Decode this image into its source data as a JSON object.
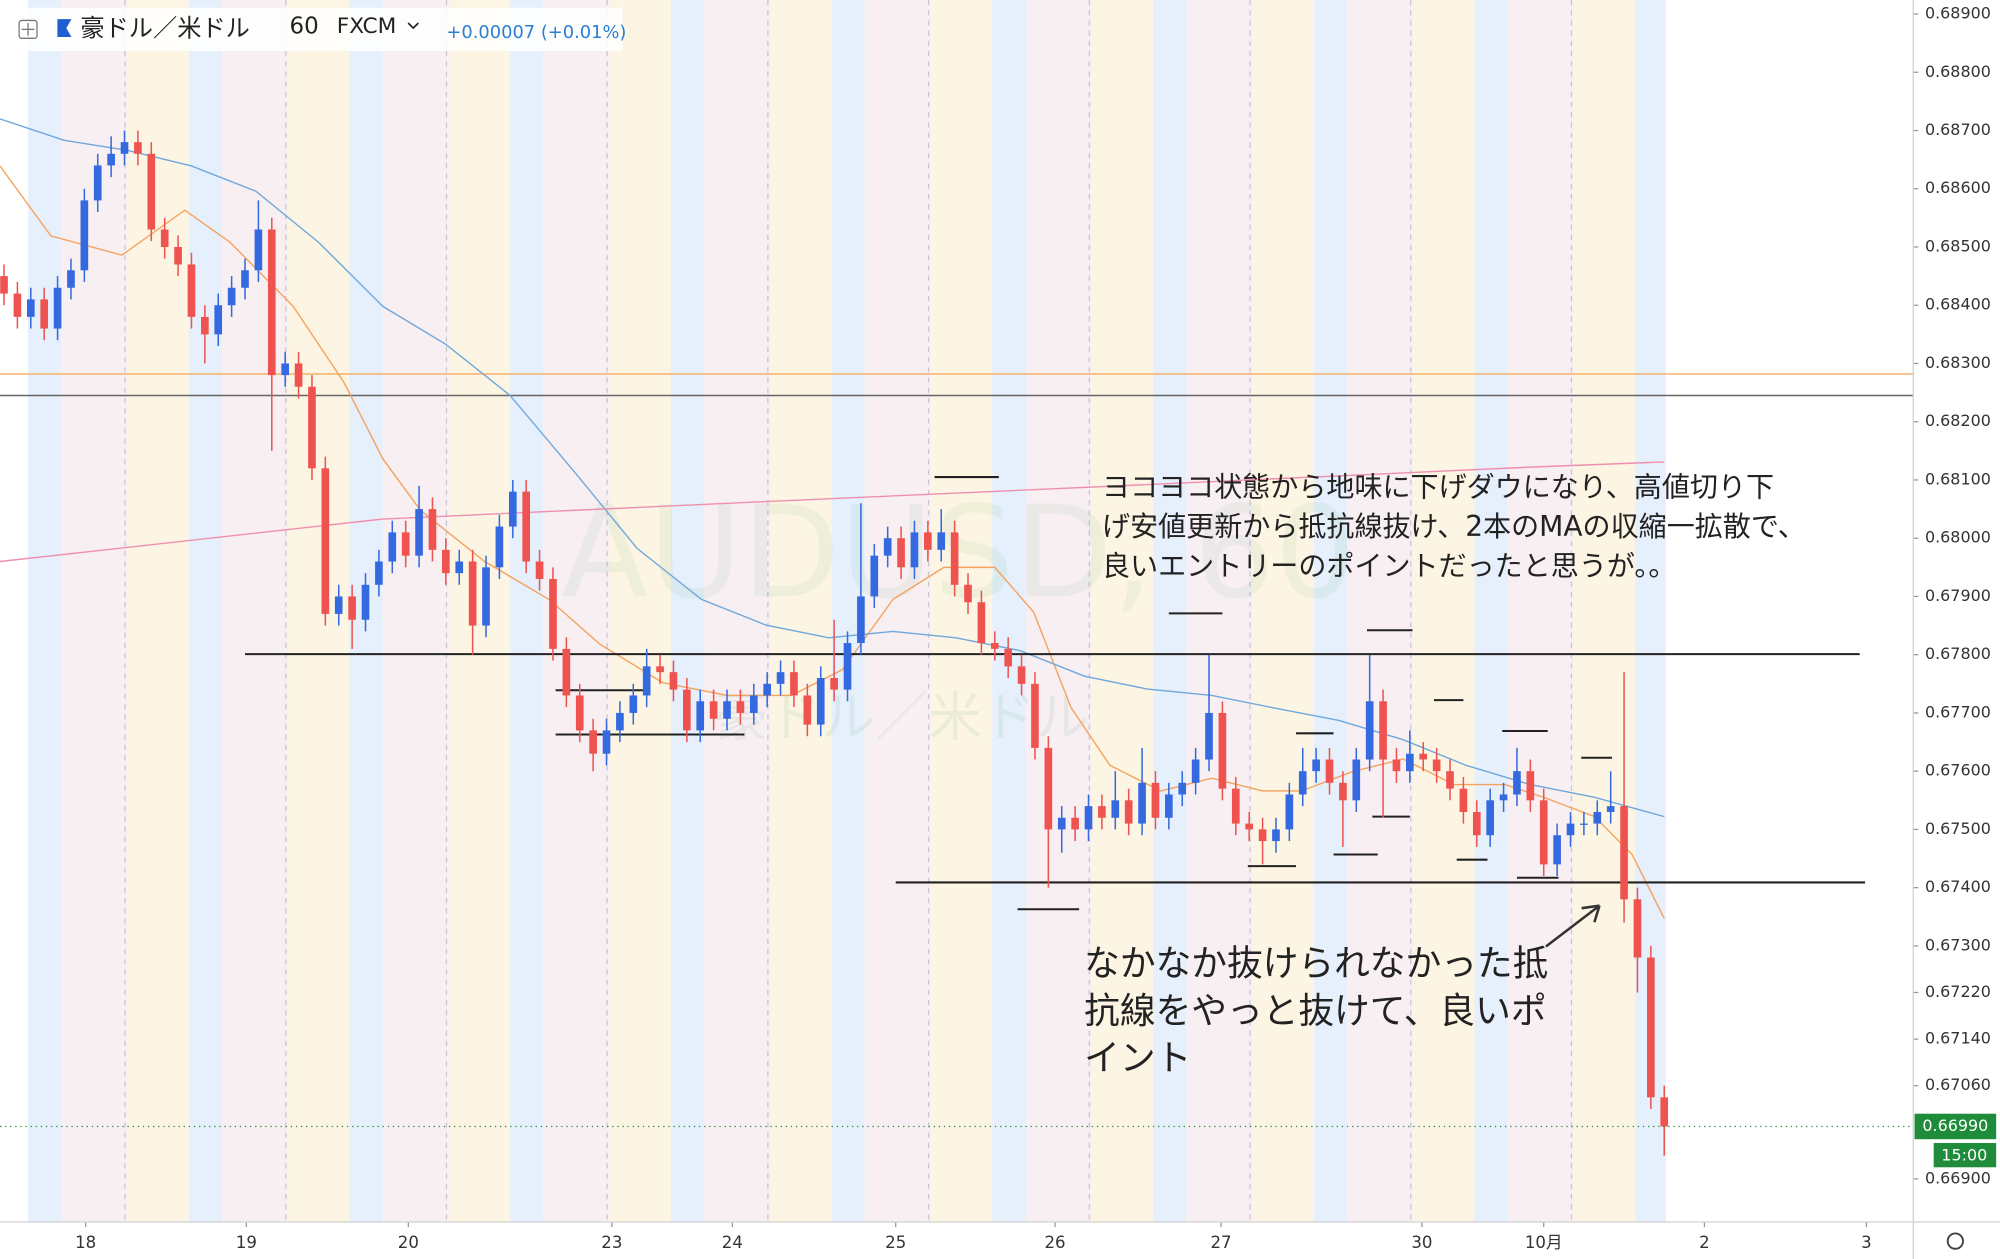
{
  "chart_data": {
    "type": "candlestick",
    "symbol": "豪ドル／米ドル",
    "interval": "60",
    "source": "FXCM",
    "change": "+0.00007 (+0.01%)",
    "watermark": "AUDUSD, 60",
    "up_color": "#3569e0",
    "down_color": "#ef5350",
    "ylim": [
      0.66826,
      0.68924
    ],
    "yticks": [
      {
        "value": 0.689,
        "label": "0.68900"
      },
      {
        "value": 0.688,
        "label": "0.68800"
      },
      {
        "value": 0.687,
        "label": "0.68700"
      },
      {
        "value": 0.686,
        "label": "0.68600"
      },
      {
        "value": 0.685,
        "label": "0.68500"
      },
      {
        "value": 0.684,
        "label": "0.68400"
      },
      {
        "value": 0.683,
        "label": "0.68300"
      },
      {
        "value": 0.682,
        "label": "0.68200"
      },
      {
        "value": 0.681,
        "label": "0.68100"
      },
      {
        "value": 0.68,
        "label": "0.68000"
      },
      {
        "value": 0.679,
        "label": "0.67900"
      },
      {
        "value": 0.678,
        "label": "0.67800"
      },
      {
        "value": 0.677,
        "label": "0.67700"
      },
      {
        "value": 0.676,
        "label": "0.67600"
      },
      {
        "value": 0.675,
        "label": "0.67500"
      },
      {
        "value": 0.674,
        "label": "0.67400"
      },
      {
        "value": 0.673,
        "label": "0.67300"
      },
      {
        "value": 0.6722,
        "label": "0.67220"
      },
      {
        "value": 0.6714,
        "label": "0.67140"
      },
      {
        "value": 0.6706,
        "label": "0.67060"
      },
      {
        "value": 0.669,
        "label": "0.66900"
      }
    ],
    "xlim": [
      -0.3,
      142.6
    ],
    "xticks": [
      {
        "value": 6.1,
        "label": "18"
      },
      {
        "value": 18.1,
        "label": "19"
      },
      {
        "value": 30.2,
        "label": "20"
      },
      {
        "value": 45.4,
        "label": "23"
      },
      {
        "value": 54.4,
        "label": "24"
      },
      {
        "value": 66.6,
        "label": "25"
      },
      {
        "value": 78.5,
        "label": "26"
      },
      {
        "value": 90.9,
        "label": "27"
      },
      {
        "value": 105.9,
        "label": "30"
      },
      {
        "value": 115.0,
        "label": "10月"
      },
      {
        "value": 127.0,
        "label": "2"
      },
      {
        "value": 139.1,
        "label": "3"
      }
    ],
    "grid": false,
    "open": [
      0.6845,
      0.6842,
      0.6838,
      0.6841,
      0.6836,
      0.6843,
      0.6846,
      0.6858,
      0.6864,
      0.6866,
      0.6868,
      0.6866,
      0.6853,
      0.685,
      0.6847,
      0.6838,
      0.6835,
      0.684,
      0.6843,
      0.6846,
      0.6853,
      0.6828,
      0.683,
      0.6826,
      0.6812,
      0.6787,
      0.679,
      0.6786,
      0.6792,
      0.6796,
      0.6801,
      0.6797,
      0.6805,
      0.6798,
      0.6794,
      0.6796,
      0.6785,
      0.6795,
      0.6802,
      0.6808,
      0.6796,
      0.6793,
      0.6781,
      0.6773,
      0.6767,
      0.6763,
      0.6767,
      0.677,
      0.6773,
      0.6778,
      0.6777,
      0.6774,
      0.6767,
      0.6772,
      0.6769,
      0.6772,
      0.677,
      0.6773,
      0.6775,
      0.6777,
      0.6773,
      0.6768,
      0.6776,
      0.6774,
      0.6782,
      0.679,
      0.6797,
      0.68,
      0.6795,
      0.6801,
      0.6798,
      0.6801,
      0.6792,
      0.6789,
      0.6782,
      0.6781,
      0.6778,
      0.6775,
      0.6764,
      0.675,
      0.6752,
      0.675,
      0.6754,
      0.6752,
      0.6755,
      0.6751,
      0.6758,
      0.6752,
      0.6756,
      0.6758,
      0.6762,
      0.677,
      0.6757,
      0.6751,
      0.675,
      0.6748,
      0.675,
      0.6756,
      0.676,
      0.6762,
      0.6758,
      0.6755,
      0.6762,
      0.6772,
      0.6762,
      0.676,
      0.6763,
      0.6762,
      0.676,
      0.6757,
      0.6753,
      0.6749,
      0.6755,
      0.6756,
      0.676,
      0.6755,
      0.6744,
      0.6749,
      0.6751,
      0.6751,
      0.6753,
      0.6754,
      0.6738,
      0.6728,
      0.6704
    ],
    "high": [
      0.6847,
      0.6844,
      0.6843,
      0.6843,
      0.6845,
      0.6848,
      0.686,
      0.6866,
      0.6869,
      0.687,
      0.687,
      0.6868,
      0.6855,
      0.6852,
      0.6849,
      0.684,
      0.6842,
      0.6845,
      0.6848,
      0.6858,
      0.6855,
      0.6832,
      0.6832,
      0.6828,
      0.6814,
      0.6792,
      0.6792,
      0.6794,
      0.6798,
      0.6803,
      0.6803,
      0.6809,
      0.6807,
      0.68,
      0.6798,
      0.6798,
      0.6797,
      0.6804,
      0.681,
      0.681,
      0.6798,
      0.6795,
      0.6783,
      0.6775,
      0.6769,
      0.6769,
      0.6772,
      0.6775,
      0.6781,
      0.678,
      0.6779,
      0.6776,
      0.6774,
      0.6774,
      0.6774,
      0.6774,
      0.6775,
      0.6777,
      0.6779,
      0.6779,
      0.6775,
      0.6778,
      0.6786,
      0.6784,
      0.6806,
      0.6799,
      0.6802,
      0.6802,
      0.6803,
      0.6803,
      0.6805,
      0.6803,
      0.6794,
      0.6791,
      0.6784,
      0.6783,
      0.678,
      0.6777,
      0.6766,
      0.6754,
      0.6754,
      0.6756,
      0.6756,
      0.676,
      0.6757,
      0.6764,
      0.676,
      0.6758,
      0.676,
      0.6764,
      0.678,
      0.6772,
      0.6759,
      0.6753,
      0.6752,
      0.6752,
      0.6758,
      0.6764,
      0.6764,
      0.6764,
      0.676,
      0.6764,
      0.678,
      0.6774,
      0.6764,
      0.6767,
      0.6765,
      0.6764,
      0.6762,
      0.6759,
      0.6755,
      0.6757,
      0.6758,
      0.6764,
      0.6762,
      0.6757,
      0.6751,
      0.6753,
      0.6753,
      0.6755,
      0.676,
      0.6777,
      0.674,
      0.673,
      0.6706
    ],
    "low": [
      0.684,
      0.6836,
      0.6836,
      0.6834,
      0.6834,
      0.6841,
      0.6844,
      0.6856,
      0.6862,
      0.6864,
      0.6864,
      0.6851,
      0.6848,
      0.6845,
      0.6836,
      0.683,
      0.6833,
      0.6838,
      0.6841,
      0.6844,
      0.6815,
      0.6826,
      0.6824,
      0.681,
      0.6785,
      0.6785,
      0.6781,
      0.6784,
      0.679,
      0.6794,
      0.6795,
      0.6795,
      0.6796,
      0.6792,
      0.6792,
      0.678,
      0.6783,
      0.6793,
      0.68,
      0.6794,
      0.6791,
      0.6779,
      0.6771,
      0.6765,
      0.676,
      0.6761,
      0.6765,
      0.6768,
      0.6771,
      0.6775,
      0.6772,
      0.6765,
      0.6765,
      0.6767,
      0.6767,
      0.6768,
      0.6768,
      0.6771,
      0.6773,
      0.6771,
      0.6766,
      0.6766,
      0.6772,
      0.6772,
      0.678,
      0.6788,
      0.6795,
      0.6793,
      0.6793,
      0.6796,
      0.6796,
      0.679,
      0.6787,
      0.678,
      0.6779,
      0.6776,
      0.6773,
      0.6762,
      0.674,
      0.6746,
      0.6748,
      0.6748,
      0.675,
      0.675,
      0.6749,
      0.6749,
      0.675,
      0.675,
      0.6754,
      0.6756,
      0.676,
      0.6755,
      0.6749,
      0.6748,
      0.6744,
      0.6746,
      0.6748,
      0.6754,
      0.6758,
      0.6756,
      0.6747,
      0.6753,
      0.676,
      0.6752,
      0.6758,
      0.6758,
      0.676,
      0.6758,
      0.6755,
      0.6751,
      0.6747,
      0.6747,
      0.6753,
      0.6754,
      0.6753,
      0.6742,
      0.6742,
      0.6747,
      0.6749,
      0.6749,
      0.6751,
      0.6734,
      0.6722,
      0.6702,
      0.6694
    ],
    "close": [
      0.6842,
      0.6838,
      0.6841,
      0.6836,
      0.6843,
      0.6846,
      0.6858,
      0.6864,
      0.6866,
      0.6868,
      0.6866,
      0.6853,
      0.685,
      0.6847,
      0.6838,
      0.6835,
      0.684,
      0.6843,
      0.6846,
      0.6853,
      0.6828,
      0.683,
      0.6826,
      0.6812,
      0.6787,
      0.679,
      0.6786,
      0.6792,
      0.6796,
      0.6801,
      0.6797,
      0.6805,
      0.6798,
      0.6794,
      0.6796,
      0.6785,
      0.6795,
      0.6802,
      0.6808,
      0.6796,
      0.6793,
      0.6781,
      0.6773,
      0.6767,
      0.6763,
      0.6767,
      0.677,
      0.6773,
      0.6778,
      0.6777,
      0.6774,
      0.6767,
      0.6772,
      0.6769,
      0.6772,
      0.677,
      0.6773,
      0.6775,
      0.6777,
      0.6773,
      0.6768,
      0.6776,
      0.6774,
      0.6782,
      0.679,
      0.6797,
      0.68,
      0.6795,
      0.6801,
      0.6798,
      0.6801,
      0.6792,
      0.6789,
      0.6782,
      0.6781,
      0.6778,
      0.6775,
      0.6764,
      0.675,
      0.6752,
      0.675,
      0.6754,
      0.6752,
      0.6755,
      0.6751,
      0.6758,
      0.6752,
      0.6756,
      0.6758,
      0.6762,
      0.677,
      0.6757,
      0.6751,
      0.675,
      0.6748,
      0.675,
      0.6756,
      0.676,
      0.6762,
      0.6758,
      0.6755,
      0.6762,
      0.6772,
      0.6762,
      0.676,
      0.6763,
      0.6762,
      0.676,
      0.6757,
      0.6753,
      0.6749,
      0.6755,
      0.6756,
      0.676,
      0.6755,
      0.6744,
      0.6749,
      0.6751,
      0.6751,
      0.6753,
      0.6754,
      0.6738,
      0.6728,
      0.6704,
      0.6699
    ],
    "lines": [
      {
        "color": "#f5a25d",
        "x": [
          -0.3,
          3.5,
          8.8,
          13.5,
          16.9,
          21.6,
          25.4,
          28.3,
          31.1,
          35.9,
          40.7,
          44.5,
          49.2,
          54.0,
          58.8,
          62.6,
          66.4,
          70.2,
          74.0,
          76.9,
          79.7,
          82.6,
          86.4,
          90.2,
          94.0,
          96.9,
          100.7,
          104.5,
          108.3,
          112.1,
          115.0,
          118.8,
          121.6,
          124.0
        ],
        "values": [
          0.68639,
          0.68519,
          0.68486,
          0.68563,
          0.68508,
          0.68398,
          0.68267,
          0.68136,
          0.68048,
          0.6796,
          0.67895,
          0.67818,
          0.67752,
          0.6773,
          0.6773,
          0.67774,
          0.67895,
          0.6795,
          0.6795,
          0.67873,
          0.67709,
          0.6761,
          0.67566,
          0.67588,
          0.67566,
          0.67566,
          0.67599,
          0.67621,
          0.67577,
          0.67577,
          0.67555,
          0.67522,
          0.67457,
          0.67347
        ]
      },
      {
        "color": "#6fa8dc",
        "x": [
          -0.3,
          4.5,
          9.2,
          14.0,
          18.8,
          23.5,
          28.3,
          33.0,
          37.8,
          42.6,
          47.3,
          52.1,
          56.9,
          61.6,
          66.4,
          71.1,
          75.9,
          80.7,
          85.4,
          90.2,
          95.0,
          99.7,
          104.5,
          109.2,
          114.0,
          118.8,
          124.0
        ],
        "values": [
          0.6872,
          0.68683,
          0.68666,
          0.68639,
          0.68596,
          0.68508,
          0.68398,
          0.68333,
          0.68245,
          0.68114,
          0.67982,
          0.67895,
          0.67851,
          0.67829,
          0.6784,
          0.67829,
          0.67807,
          0.67763,
          0.67741,
          0.6773,
          0.67708,
          0.67687,
          0.67654,
          0.6761,
          0.67577,
          0.67555,
          0.67522
        ]
      },
      {
        "color": "#ef8fae",
        "x": [
          -0.3,
          28.3,
          56.9,
          85.4,
          114.0,
          124.0
        ],
        "values": [
          0.6796,
          0.68033,
          0.68063,
          0.68092,
          0.68122,
          0.68131
        ]
      }
    ],
    "levels": [
      {
        "value": 0.68282,
        "color": "#f5b26b"
      },
      {
        "value": 0.68245,
        "color": "#666666"
      }
    ],
    "drawings": [
      {
        "x": [
          18.0,
          138.6
        ],
        "value": 0.67801
      },
      {
        "x": [
          66.6,
          139.0
        ],
        "value": 0.67409
      },
      {
        "x": [
          69.5,
          74.3
        ],
        "value": 0.68105
      },
      {
        "x": [
          87.0,
          91.0
        ],
        "value": 0.67871
      },
      {
        "x": [
          101.8,
          105.2
        ],
        "value": 0.67842
      },
      {
        "x": [
          106.8,
          109.0
        ],
        "value": 0.67722
      },
      {
        "x": [
          96.5,
          99.3
        ],
        "value": 0.67665
      },
      {
        "x": [
          111.9,
          115.3
        ],
        "value": 0.67669
      },
      {
        "x": [
          117.8,
          120.1
        ],
        "value": 0.67623
      },
      {
        "x": [
          102.2,
          105.0
        ],
        "value": 0.67522
      },
      {
        "x": [
          99.3,
          102.6
        ],
        "value": 0.67457
      },
      {
        "x": [
          92.9,
          96.5
        ],
        "value": 0.67437
      },
      {
        "x": [
          108.5,
          110.8
        ],
        "value": 0.67448
      },
      {
        "x": [
          113.0,
          116.1
        ],
        "value": 0.67417
      },
      {
        "x": [
          75.7,
          80.3
        ],
        "value": 0.67363
      },
      {
        "x": [
          41.2,
          48.1
        ],
        "value": 0.67739
      },
      {
        "x": [
          41.2,
          55.3
        ],
        "value": 0.67663
      }
    ],
    "last_price": {
      "value": 0.6699,
      "label": "0.66990"
    },
    "countdown": "15:00",
    "annotations": [
      {
        "lines": [
          "ヨコヨコ状態から地味に下げダウになり、高値切り下",
          "げ安値更新から抵抗線抜け、2本のMAの収縮一拡散で、",
          "良いエントリーのポイントだったと思うが。。"
        ]
      },
      {
        "lines": [
          "なかなか抜けられなかった抵",
          "抗線をやっと抜けて、良いポ",
          "イント"
        ]
      }
    ]
  }
}
